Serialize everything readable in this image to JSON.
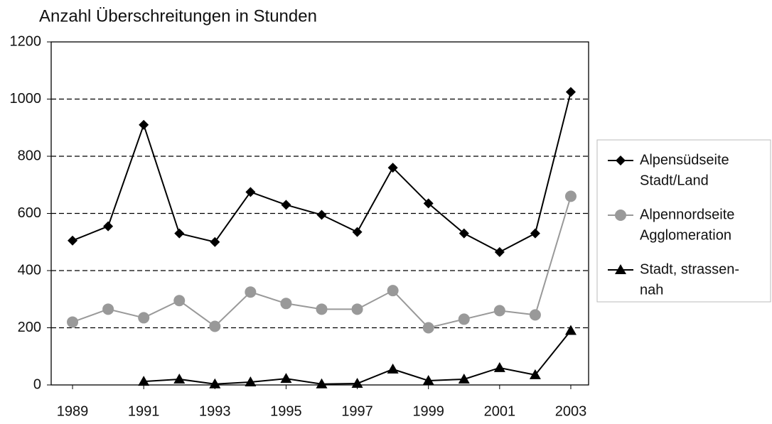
{
  "chart_data": {
    "type": "line",
    "title": "Anzahl Überschreitungen in Stunden",
    "x": [
      1989,
      1990,
      1991,
      1992,
      1993,
      1994,
      1995,
      1996,
      1997,
      1998,
      1999,
      2000,
      2001,
      2002,
      2003
    ],
    "xlim": [
      1988.4,
      2003.5
    ],
    "xticks": [
      1989,
      1991,
      1993,
      1995,
      1997,
      1999,
      2001,
      2003
    ],
    "ylim": [
      0,
      1200
    ],
    "yticks": [
      0,
      200,
      400,
      600,
      800,
      1000,
      1200
    ],
    "grid": true,
    "legend": "right",
    "series": [
      {
        "name": [
          "Alpensüdseite",
          "Stadt/Land"
        ],
        "color": "#000000",
        "marker": "diamond",
        "values": [
          505,
          555,
          910,
          530,
          500,
          675,
          630,
          595,
          535,
          760,
          635,
          530,
          465,
          530,
          1025
        ]
      },
      {
        "name": [
          "Alpennordseite",
          "Agglomeration"
        ],
        "color": "#999999",
        "marker": "circle",
        "values": [
          220,
          265,
          235,
          295,
          205,
          325,
          285,
          265,
          265,
          330,
          200,
          230,
          260,
          245,
          660
        ]
      },
      {
        "name": [
          "Stadt, strassen-",
          "nah"
        ],
        "color": "#000000",
        "marker": "triangle",
        "values": [
          null,
          null,
          12,
          20,
          3,
          10,
          22,
          3,
          5,
          55,
          15,
          20,
          60,
          35,
          190
        ]
      }
    ]
  }
}
